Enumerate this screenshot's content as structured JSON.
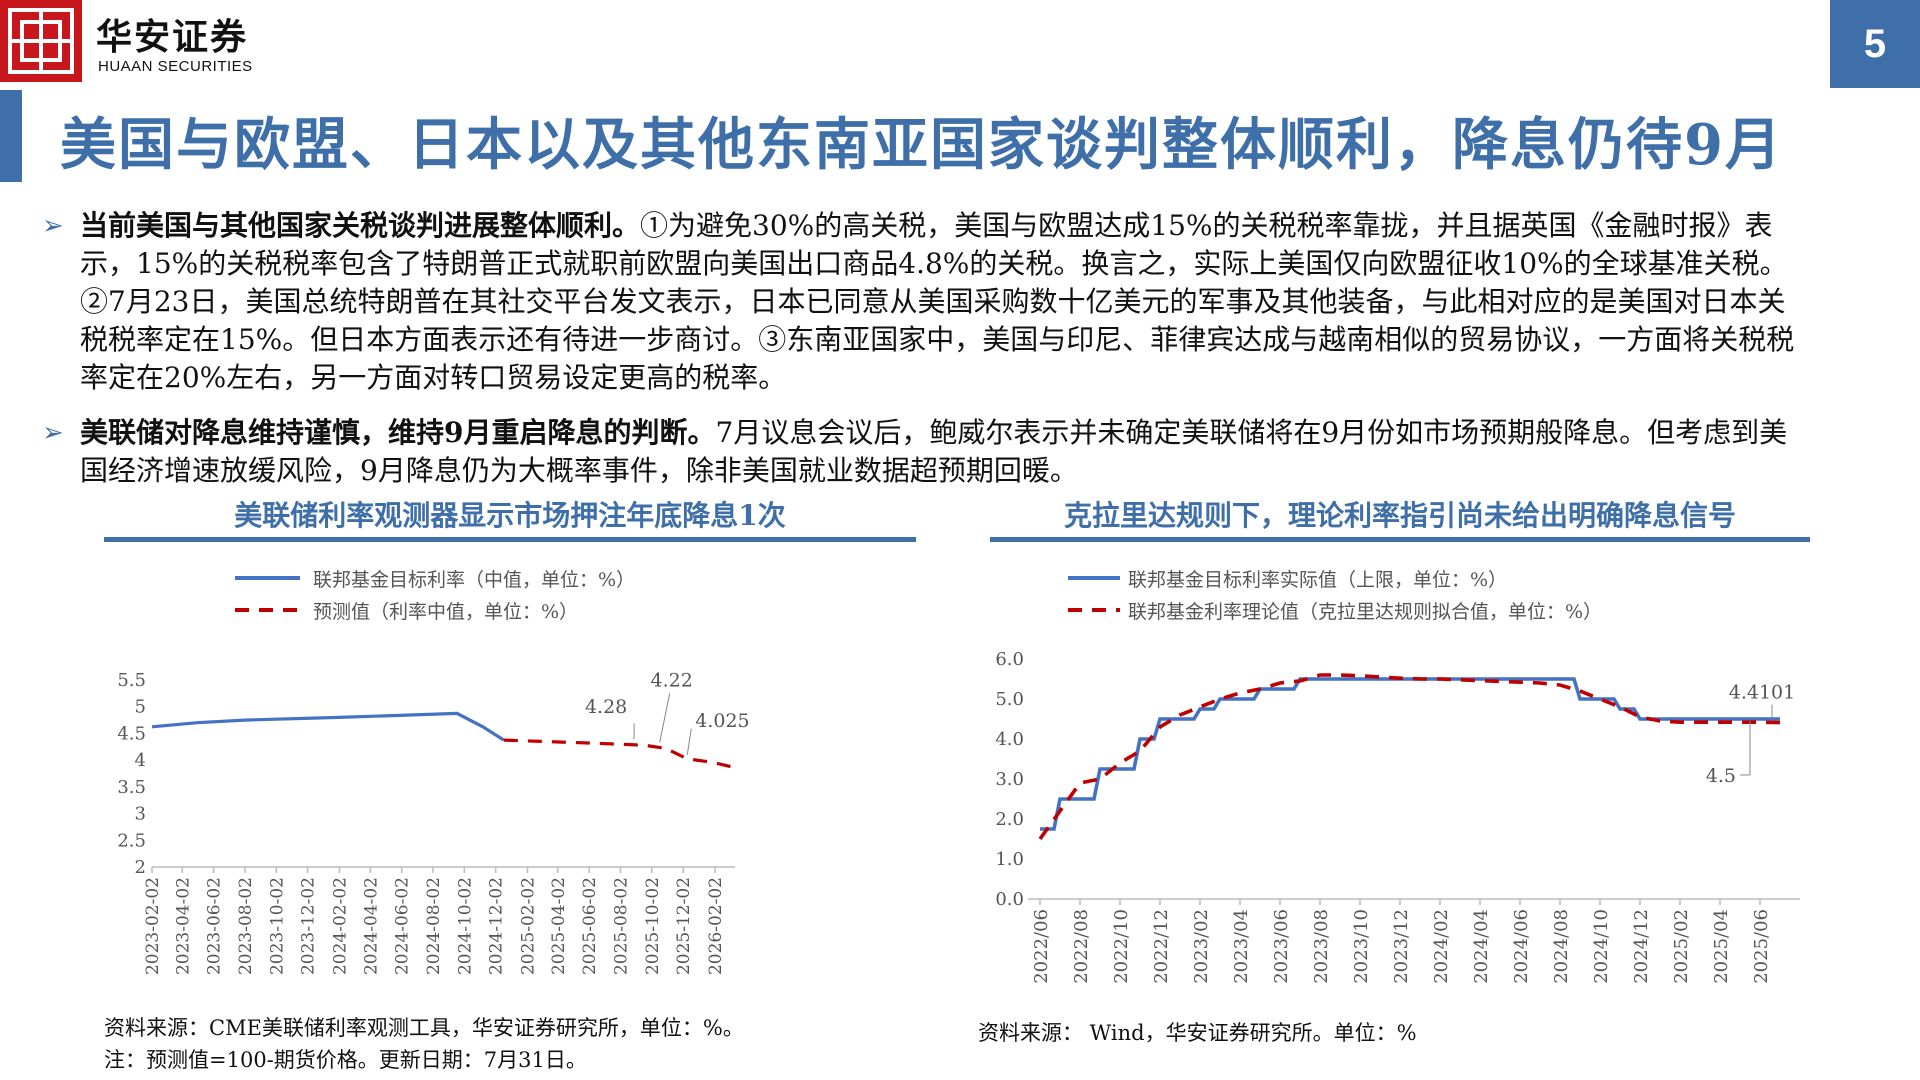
{
  "header": {
    "brand_cn": "华安证券",
    "brand_en": "HUAAN SECURITIES",
    "page_number": "5",
    "title": "美国与欧盟、日本以及其他东南亚国家谈判整体顺利，降息仍待9月",
    "colors": {
      "accent": "#3e6fa8",
      "logo_red": "#c8161d"
    },
    "logo_icon": "huaan-logo-icon"
  },
  "bullets": [
    {
      "bold": "当前美国与其他国家关税谈判进展整体顺利。",
      "text": "①为避免30%的高关税，美国与欧盟达成15%的关税税率靠拢，并且据英国《金融时报》表示，15%的关税税率包含了特朗普正式就职前欧盟向美国出口商品4.8%的关税。换言之，实际上美国仅向欧盟征收10%的全球基准关税。②7月23日，美国总统特朗普在其社交平台发文表示，日本已同意从美国采购数十亿美元的军事及其他装备，与此相对应的是美国对日本关税税率定在15%。但日本方面表示还有待进一步商讨。③东南亚国家中，美国与印尼、菲律宾达成与越南相似的贸易协议，一方面将关税税率定在20%左右，另一方面对转口贸易设定更高的税率。"
    },
    {
      "bold": "美联储对降息维持谨慎，维持9月重启降息的判断。",
      "text": "7月议息会议后，鲍威尔表示并未确定美联储将在9月份如市场预期般降息。但考虑到美国经济增速放缓风险，9月降息仍为大概率事件，除非美国就业数据超预期回暖。"
    }
  ],
  "left_panel": {
    "title": "美联储利率观测器显示市场押注年底降息1次",
    "source": "资料来源：CME美联储利率观测工具，华安证券研究所，单位：%。",
    "note": "注：预测值=100-期货价格。更新日期：7月31日。"
  },
  "right_panel": {
    "title": "克拉里达规则下，理论利率指引尚未给出明确降息信号",
    "source": "资料来源： Wind，华安证券研究所。单位：%"
  },
  "chart_data": [
    {
      "type": "line",
      "ylim": [
        2,
        5.5
      ],
      "yticks": [
        "5.5",
        "5",
        "4.5",
        "4",
        "3.5",
        "3",
        "2.5",
        "2"
      ],
      "ytick_values": [
        5.5,
        5,
        4.5,
        4,
        3.5,
        3,
        2.5,
        2
      ],
      "x_tick_labels": [
        "2023-02-02",
        "2023-04-02",
        "2023-06-02",
        "2023-08-02",
        "2023-10-02",
        "2023-12-02",
        "2024-02-02",
        "2024-04-02",
        "2024-06-02",
        "2024-08-02",
        "2024-10-02",
        "2024-12-02",
        "2025-02-02",
        "2025-04-02",
        "2025-06-02",
        "2025-08-02",
        "2025-10-02",
        "2025-12-02",
        "2026-02-02"
      ],
      "legend": [
        "联邦基金目标利率（中值，单位：%）",
        "预测值（利率中值，单位：%）"
      ],
      "series": [
        {
          "name": "联邦基金目标利率（中值，单位：%）",
          "style": "solid",
          "color": "#4472c4",
          "x": [
            "2023-02-02",
            "2023-05-01",
            "2023-08-01",
            "2024-02-01",
            "2024-09-18",
            "2024-11-07",
            "2024-12-18"
          ],
          "y": [
            4.625,
            4.7,
            4.75,
            4.8,
            4.875,
            4.625,
            4.375
          ]
        },
        {
          "name": "预测值（利率中值，单位：%）",
          "style": "dashed",
          "color": "#c00000",
          "x": [
            "2024-12-18",
            "2025-03-01",
            "2025-06-01",
            "2025-09-17",
            "2025-10-29",
            "2025-12-10",
            "2026-01-28",
            "2026-03-18"
          ],
          "y": [
            4.375,
            4.35,
            4.32,
            4.28,
            4.22,
            4.025,
            3.96,
            3.85
          ]
        }
      ],
      "annotations": [
        "4.28",
        "4.22",
        "4.025"
      ]
    },
    {
      "type": "line",
      "ylim": [
        0,
        6
      ],
      "yticks": [
        "6.0",
        "5.0",
        "4.0",
        "3.0",
        "2.0",
        "1.0",
        "0.0"
      ],
      "ytick_values": [
        6,
        5,
        4,
        3,
        2,
        1,
        0
      ],
      "x_tick_labels": [
        "2022/06",
        "2022/08",
        "2022/10",
        "2022/12",
        "2023/02",
        "2023/04",
        "2023/06",
        "2023/08",
        "2023/10",
        "2023/12",
        "2024/02",
        "2024/04",
        "2024/06",
        "2024/08",
        "2024/10",
        "2024/12",
        "2025/02",
        "2025/04",
        "2025/06"
      ],
      "legend": [
        "联邦基金目标利率实际值（上限，单位：%）",
        "联邦基金利率理论值（克拉里达规则拟合值，单位：%）"
      ],
      "series": [
        {
          "name": "联邦基金目标利率实际值（上限，单位：%）",
          "style": "solid",
          "color": "#4472c4",
          "x": [
            "2022/06",
            "2022/07",
            "2022/08",
            "2022/09",
            "2022/10",
            "2022/11",
            "2022/12",
            "2023/01",
            "2023/02",
            "2023/03",
            "2023/04",
            "2023/05",
            "2023/06",
            "2023/07",
            "2023/08",
            "2023/09",
            "2023/10",
            "2023/11",
            "2023/12",
            "2024/01",
            "2024/02",
            "2024/03",
            "2024/04",
            "2024/05",
            "2024/06",
            "2024/07",
            "2024/08",
            "2024/09",
            "2024/10",
            "2024/11",
            "2024/12",
            "2025/01",
            "2025/02",
            "2025/03",
            "2025/04",
            "2025/05",
            "2025/06",
            "2025/07"
          ],
          "y": [
            1.75,
            2.5,
            2.5,
            3.25,
            3.25,
            4.0,
            4.5,
            4.5,
            4.75,
            5.0,
            5.0,
            5.25,
            5.25,
            5.5,
            5.5,
            5.5,
            5.5,
            5.5,
            5.5,
            5.5,
            5.5,
            5.5,
            5.5,
            5.5,
            5.5,
            5.5,
            5.5,
            5.0,
            5.0,
            4.75,
            4.5,
            4.5,
            4.5,
            4.5,
            4.5,
            4.5,
            4.5,
            4.5
          ]
        },
        {
          "name": "联邦基金利率理论值（克拉里达规则拟合值，单位：%）",
          "style": "dashed",
          "color": "#c00000",
          "x": [
            "2022/06",
            "2022/07",
            "2022/08",
            "2022/09",
            "2022/10",
            "2022/11",
            "2022/12",
            "2023/01",
            "2023/02",
            "2023/03",
            "2023/04",
            "2023/05",
            "2023/06",
            "2023/07",
            "2023/08",
            "2023/09",
            "2023/10",
            "2023/11",
            "2023/12",
            "2024/01",
            "2024/02",
            "2024/03",
            "2024/04",
            "2024/05",
            "2024/06",
            "2024/07",
            "2024/08",
            "2024/09",
            "2024/10",
            "2024/11",
            "2024/12",
            "2025/01",
            "2025/02",
            "2025/03",
            "2025/04",
            "2025/05",
            "2025/06",
            "2025/07"
          ],
          "y": [
            1.5,
            2.2,
            2.9,
            3.0,
            3.4,
            3.7,
            4.3,
            4.6,
            4.8,
            5.0,
            5.15,
            5.25,
            5.4,
            5.45,
            5.6,
            5.6,
            5.58,
            5.55,
            5.52,
            5.5,
            5.5,
            5.48,
            5.46,
            5.44,
            5.42,
            5.4,
            5.35,
            5.2,
            5.0,
            4.8,
            4.55,
            4.45,
            4.42,
            4.42,
            4.42,
            4.42,
            4.42,
            4.41
          ]
        }
      ],
      "annotations": [
        "4.4101",
        "4.5"
      ]
    }
  ]
}
